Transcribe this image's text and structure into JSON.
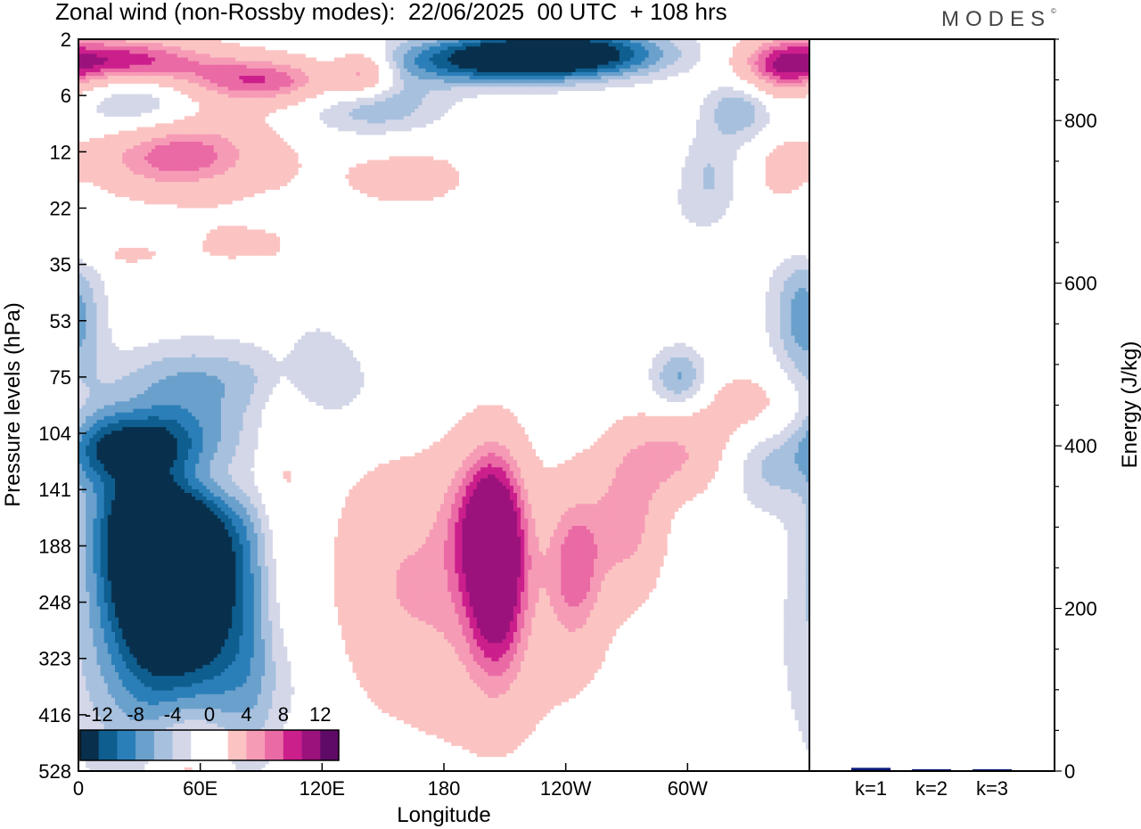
{
  "header": {
    "title": "Zonal wind (non-Rossby modes):  22/06/2025  00 UTC  + 108 hrs",
    "brand": "MODES",
    "brand_mark": "©"
  },
  "chart_data": [
    {
      "type": "heatmap",
      "title": "Zonal wind (non-Rossby modes):  22/06/2025  00 UTC  + 108 hrs",
      "xlabel": "Longitude",
      "ylabel": "Pressure levels (hPa)",
      "x_ticks": [
        "0",
        "60E",
        "120E",
        "180",
        "120W",
        "60W"
      ],
      "y_ticks": [
        "2",
        "6",
        "12",
        "22",
        "35",
        "53",
        "75",
        "104",
        "141",
        "188",
        "248",
        "323",
        "416",
        "528"
      ],
      "colorbar": {
        "labels": [
          "-12",
          "-8",
          "-4",
          "0",
          "4",
          "8",
          "12"
        ],
        "colors": [
          "#08304d",
          "#0f5e90",
          "#2b7fb8",
          "#6aa0cc",
          "#a7c0de",
          "#d4d7e8",
          "#ffffff",
          "#ffffff",
          "#fbc4c2",
          "#f69bb6",
          "#ea6aa5",
          "#cb1f8c",
          "#9b127c",
          "#5e0a66"
        ]
      },
      "color_ramp": {
        "neg1": "#d4d7e8",
        "neg2": "#a7c0de",
        "neg3": "#6aa0cc",
        "neg4": "#2b7fb8",
        "neg5": "#0f5e90",
        "neg6": "#08304d",
        "pos1": "#fbc4c2",
        "pos2": "#f69bb6",
        "pos3": "#ea6aa5",
        "pos4": "#cb1f8c",
        "pos5": "#9b127c"
      },
      "features": [
        {
          "lon": 48,
          "lev": 2,
          "sx": 30,
          "sy": 0.5,
          "amp": 10
        },
        {
          "lon": 28,
          "lev": 1.1,
          "sx": 22,
          "sy": 0.45,
          "amp": -6
        },
        {
          "lon": 30,
          "lev": 8.3,
          "sx": 16,
          "sy": 0.9,
          "amp": -8
        },
        {
          "lon": 40,
          "lev": 9.2,
          "sx": 20,
          "sy": 1.4,
          "amp": -13
        },
        {
          "lon": 60,
          "lev": 8.8,
          "sx": 25,
          "sy": 1.8,
          "amp": -9
        },
        {
          "lon": 42,
          "lev": 11,
          "sx": 35,
          "sy": 1.8,
          "amp": -6
        },
        {
          "lon": 90,
          "lev": 11.5,
          "sx": 18,
          "sy": 1.0,
          "amp": -3
        },
        {
          "lon": 10,
          "lev": 7.3,
          "sx": 12,
          "sy": 0.6,
          "amp": -7
        },
        {
          "lon": 32,
          "lev": 7.2,
          "sx": 18,
          "sy": 0.4,
          "amp": -6
        },
        {
          "lon": 45,
          "lev": 7.8,
          "sx": 28,
          "sy": 0.5,
          "amp": 9
        },
        {
          "lon": 55,
          "lev": 12.5,
          "sx": 15,
          "sy": 0.8,
          "amp": 4
        },
        {
          "lon": 100,
          "lev": 8.5,
          "sx": 8,
          "sy": 3.0,
          "amp": 3
        },
        {
          "lon": 155,
          "lev": 9.3,
          "sx": 25,
          "sy": 1.4,
          "amp": 4
        },
        {
          "lon": 200,
          "lev": 8.5,
          "sx": 14,
          "sy": 1.0,
          "amp": 9
        },
        {
          "lon": 205,
          "lev": 9.5,
          "sx": 10,
          "sy": 1.3,
          "amp": 11
        },
        {
          "lon": 195,
          "lev": 10.5,
          "sx": 40,
          "sy": 1.6,
          "amp": 4
        },
        {
          "lon": 244,
          "lev": 9.3,
          "sx": 10,
          "sy": 1.0,
          "amp": 8
        },
        {
          "lon": 270,
          "lev": 8.5,
          "sx": 12,
          "sy": 0.9,
          "amp": 7
        },
        {
          "lon": 292,
          "lev": 7.4,
          "sx": 18,
          "sy": 0.5,
          "amp": 6
        },
        {
          "lon": 330,
          "lev": 6.5,
          "sx": 25,
          "sy": 0.5,
          "amp": 4
        },
        {
          "lon": 320,
          "lev": 11.5,
          "sx": 8,
          "sy": 0.8,
          "amp": 3
        },
        {
          "lon": 340,
          "lev": 7.5,
          "sx": 15,
          "sy": 0.6,
          "amp": -5
        },
        {
          "lon": 295,
          "lev": 6,
          "sx": 10,
          "sy": 0.4,
          "amp": -7
        },
        {
          "lon": 60,
          "lev": 6,
          "sx": 40,
          "sy": 0.4,
          "amp": -3
        },
        {
          "lon": 130,
          "lev": 6.2,
          "sx": 15,
          "sy": 0.6,
          "amp": -2
        },
        {
          "lon": 358,
          "lev": 5,
          "sx": 10,
          "sy": 1.0,
          "amp": -5
        },
        {
          "lon": 20,
          "lev": 0.35,
          "sx": 30,
          "sy": 0.3,
          "amp": 12
        },
        {
          "lon": 90,
          "lev": 0.7,
          "sx": 30,
          "sy": 0.3,
          "amp": 10
        },
        {
          "lon": 140,
          "lev": 0.55,
          "sx": 10,
          "sy": 0.3,
          "amp": 8
        },
        {
          "lon": 200,
          "lev": 0.35,
          "sx": 40,
          "sy": 0.3,
          "amp": -10
        },
        {
          "lon": 240,
          "lev": 0.2,
          "sx": 35,
          "sy": 0.3,
          "amp": -13
        },
        {
          "lon": 345,
          "lev": 0.5,
          "sx": 15,
          "sy": 0.4,
          "amp": 8
        },
        {
          "lon": 145,
          "lev": 1.15,
          "sx": 25,
          "sy": 0.4,
          "amp": -6
        },
        {
          "lon": 325,
          "lev": 1.2,
          "sx": 12,
          "sy": 0.4,
          "amp": -6
        },
        {
          "lon": 160,
          "lev": 2.4,
          "sx": 30,
          "sy": 0.5,
          "amp": 3
        },
        {
          "lon": 310,
          "lev": 2.4,
          "sx": 10,
          "sy": 0.6,
          "amp": -4
        },
        {
          "lon": 345,
          "lev": 2.3,
          "sx": 8,
          "sy": 0.4,
          "amp": 3
        },
        {
          "lon": 270,
          "lev": 3.2,
          "sx": 25,
          "sy": 0.6,
          "amp": -2
        },
        {
          "lon": 350,
          "lev": 4.8,
          "sx": 12,
          "sy": 0.7,
          "amp": -2.5
        },
        {
          "lon": 20,
          "lev": 3.8,
          "sx": 20,
          "sy": 0.2,
          "amp": 2.5
        },
        {
          "lon": 75,
          "lev": 3.6,
          "sx": 20,
          "sy": 0.4,
          "amp": 2.5
        },
        {
          "lon": 110,
          "lev": 5.5,
          "sx": 15,
          "sy": 0.5,
          "amp": -2.5
        },
        {
          "lon": 310,
          "lev": 11.5,
          "sx": 10,
          "sy": 0.7,
          "amp": -2
        },
        {
          "lon": 150,
          "lev": 13,
          "sx": 12,
          "sy": 0.4,
          "amp": -2.5
        },
        {
          "lon": 50,
          "lev": 13,
          "sx": 12,
          "sy": 0.5,
          "amp": 3
        }
      ],
      "legend": "bottom-left"
    },
    {
      "type": "bar",
      "categories": [
        "k=1",
        "k=2",
        "k=3"
      ],
      "values": [
        4,
        2,
        1.5
      ],
      "ylabel": "Energy (J/kg)",
      "ylim": [
        0,
        900
      ],
      "y_ticks": [
        0,
        200,
        400,
        600,
        800
      ],
      "bar_color": "#0a1a7a"
    }
  ]
}
